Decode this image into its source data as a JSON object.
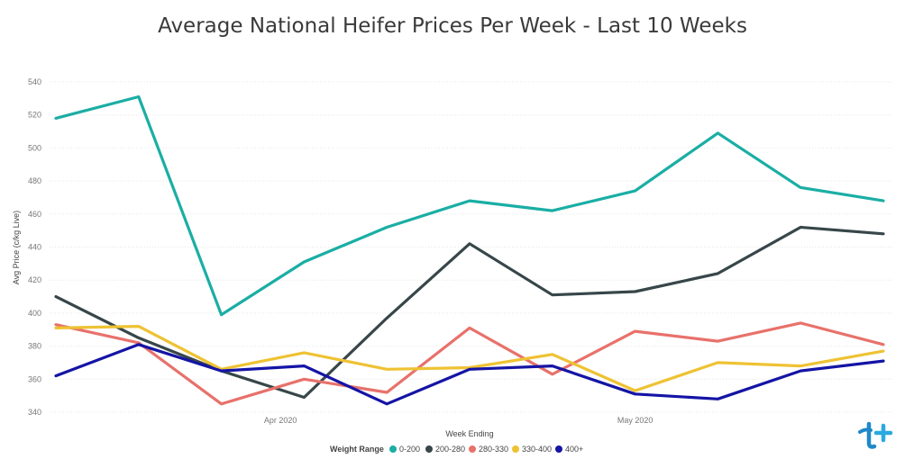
{
  "chart_data": {
    "type": "line",
    "title": "Average National Heifer Prices Per Week - Last 10 Weeks",
    "xlabel": "Week Ending",
    "ylabel": "Avg Price (c/kg Live)",
    "ylim": [
      340,
      540
    ],
    "yticks": [
      340,
      360,
      380,
      400,
      420,
      440,
      460,
      480,
      500,
      520,
      540
    ],
    "x": [
      "2020-03-13",
      "2020-03-20",
      "2020-03-27",
      "2020-04-03",
      "2020-04-10",
      "2020-04-17",
      "2020-04-24",
      "2020-05-01",
      "2020-05-08",
      "2020-05-15",
      "2020-05-22"
    ],
    "xticks": [
      {
        "date": "2020-04-01",
        "label": "Apr 2020"
      },
      {
        "date": "2020-05-01",
        "label": "May 2020"
      }
    ],
    "grid": true,
    "legend": {
      "title": "Weight Range",
      "position": "bottom-center"
    },
    "series": [
      {
        "name": "0-200",
        "color": "#1aaea4",
        "values": [
          518,
          531,
          399,
          431,
          452,
          468,
          462,
          474,
          509,
          476,
          468
        ]
      },
      {
        "name": "200-280",
        "color": "#374649",
        "values": [
          410,
          385,
          365,
          349,
          397,
          442,
          411,
          413,
          424,
          452,
          448
        ]
      },
      {
        "name": "280-330",
        "color": "#e8716b",
        "values": [
          393,
          382,
          345,
          360,
          352,
          391,
          363,
          389,
          383,
          394,
          381
        ]
      },
      {
        "name": "330-400",
        "color": "#eec233",
        "values": [
          391,
          392,
          366,
          376,
          366,
          367,
          375,
          353,
          370,
          368,
          377
        ]
      },
      {
        "name": "400+",
        "color": "#1414a6",
        "values": [
          362,
          381,
          365,
          368,
          345,
          366,
          368,
          351,
          348,
          365,
          371
        ]
      }
    ]
  },
  "logo": {
    "icon": "brand-logo-icon",
    "color": "#1f88c8"
  }
}
